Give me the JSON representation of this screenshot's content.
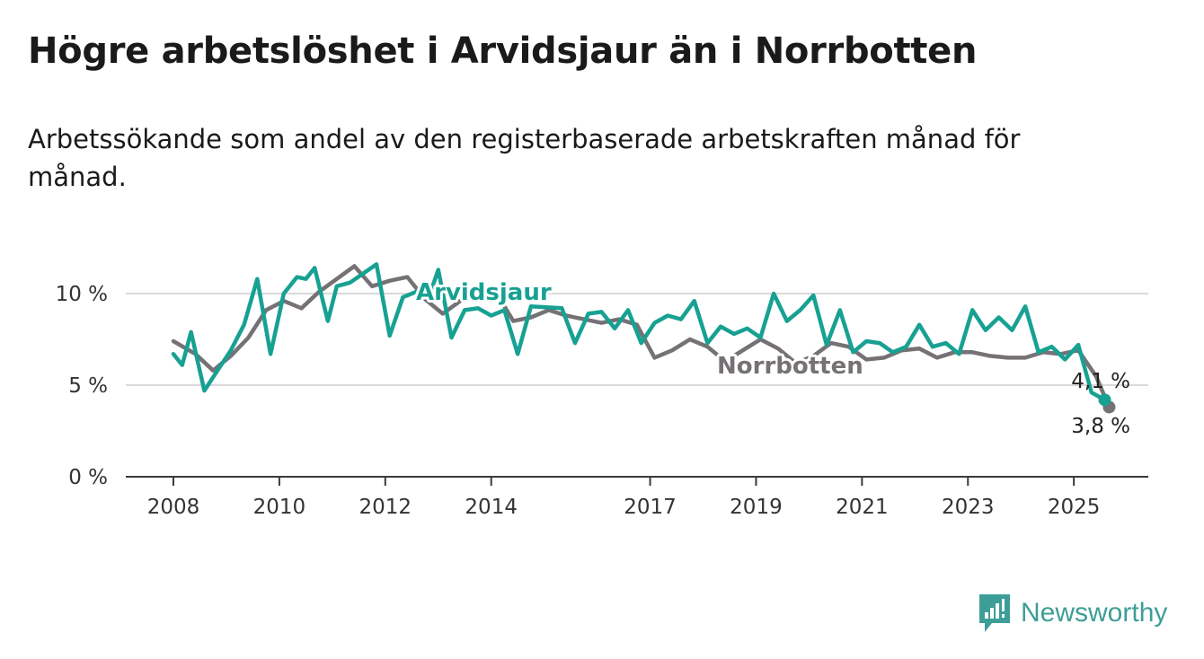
{
  "title": "Högre arbetslöshet i Arvidsjaur än i Norrbotten",
  "subtitle": "Arbetssökande som andel av den registerbaserade arbetskraften månad för månad.",
  "brand": {
    "name": "Newsworthy",
    "color": "#3d9e97"
  },
  "chart_data": {
    "type": "line",
    "title": "Högre arbetslöshet i Arvidsjaur än i Norrbotten",
    "subtitle": "Arbetssökande som andel av den registerbaserade arbetskraften månad för månad.",
    "x_start": "2008-01",
    "x_end": "2025-09",
    "x_ticks": [
      "2008",
      "2010",
      "2012",
      "2014",
      "2017",
      "2019",
      "2021",
      "2023",
      "2025"
    ],
    "y_ticks": [
      "0 %",
      "5 %",
      "10 %"
    ],
    "ylim": [
      0,
      12
    ],
    "grid": true,
    "series": [
      {
        "name": "Arvidsjaur",
        "color": "#17a192",
        "end_label": "4,1 %",
        "points": [
          [
            "2008-01",
            6.7
          ],
          [
            "2008-03",
            6.1
          ],
          [
            "2008-05",
            7.9
          ],
          [
            "2008-08",
            4.7
          ],
          [
            "2008-11",
            5.8
          ],
          [
            "2009-02",
            6.9
          ],
          [
            "2009-05",
            8.3
          ],
          [
            "2009-08",
            10.8
          ],
          [
            "2009-11",
            6.7
          ],
          [
            "2010-02",
            10.0
          ],
          [
            "2010-05",
            10.9
          ],
          [
            "2010-07",
            10.8
          ],
          [
            "2010-09",
            11.4
          ],
          [
            "2010-12",
            8.5
          ],
          [
            "2011-02",
            10.4
          ],
          [
            "2011-05",
            10.6
          ],
          [
            "2011-08",
            11.1
          ],
          [
            "2011-11",
            11.6
          ],
          [
            "2012-02",
            7.7
          ],
          [
            "2012-05",
            9.8
          ],
          [
            "2012-08",
            10.1
          ],
          [
            "2012-11",
            9.9
          ],
          [
            "2013-01",
            11.3
          ],
          [
            "2013-04",
            7.6
          ],
          [
            "2013-07",
            9.1
          ],
          [
            "2013-10",
            9.2
          ],
          [
            "2014-01",
            8.8
          ],
          [
            "2014-04",
            9.1
          ],
          [
            "2014-07",
            6.7
          ],
          [
            "2014-10",
            9.3
          ],
          [
            "2015-05",
            9.2
          ],
          [
            "2015-08",
            7.3
          ],
          [
            "2015-11",
            8.9
          ],
          [
            "2016-02",
            9.0
          ],
          [
            "2016-05",
            8.1
          ],
          [
            "2016-08",
            9.1
          ],
          [
            "2016-11",
            7.3
          ],
          [
            "2017-02",
            8.4
          ],
          [
            "2017-05",
            8.8
          ],
          [
            "2017-08",
            8.6
          ],
          [
            "2017-11",
            9.6
          ],
          [
            "2018-02",
            7.3
          ],
          [
            "2018-05",
            8.2
          ],
          [
            "2018-08",
            7.8
          ],
          [
            "2018-11",
            8.1
          ],
          [
            "2019-02",
            7.6
          ],
          [
            "2019-05",
            10.0
          ],
          [
            "2019-08",
            8.5
          ],
          [
            "2019-11",
            9.1
          ],
          [
            "2020-02",
            9.9
          ],
          [
            "2020-05",
            7.2
          ],
          [
            "2020-08",
            9.1
          ],
          [
            "2020-11",
            6.8
          ],
          [
            "2021-02",
            7.4
          ],
          [
            "2021-05",
            7.3
          ],
          [
            "2021-08",
            6.8
          ],
          [
            "2021-11",
            7.1
          ],
          [
            "2022-02",
            8.3
          ],
          [
            "2022-05",
            7.1
          ],
          [
            "2022-08",
            7.3
          ],
          [
            "2022-11",
            6.7
          ],
          [
            "2023-02",
            9.1
          ],
          [
            "2023-05",
            8.0
          ],
          [
            "2023-08",
            8.7
          ],
          [
            "2023-11",
            8.0
          ],
          [
            "2024-02",
            9.3
          ],
          [
            "2024-05",
            6.8
          ],
          [
            "2024-08",
            7.1
          ],
          [
            "2024-11",
            6.4
          ],
          [
            "2025-02",
            7.2
          ],
          [
            "2025-05",
            4.6
          ],
          [
            "2025-08",
            4.2
          ]
        ]
      },
      {
        "name": "Norrbotten",
        "color": "#757175",
        "end_label": "3,8 %",
        "points": [
          [
            "2008-01",
            7.4
          ],
          [
            "2008-06",
            6.7
          ],
          [
            "2008-10",
            5.8
          ],
          [
            "2009-02",
            6.6
          ],
          [
            "2009-06",
            7.6
          ],
          [
            "2009-10",
            9.1
          ],
          [
            "2010-02",
            9.6
          ],
          [
            "2010-06",
            9.2
          ],
          [
            "2010-10",
            10.1
          ],
          [
            "2011-02",
            10.8
          ],
          [
            "2011-06",
            11.5
          ],
          [
            "2011-10",
            10.4
          ],
          [
            "2012-02",
            10.7
          ],
          [
            "2012-06",
            10.9
          ],
          [
            "2012-10",
            9.7
          ],
          [
            "2013-02",
            8.9
          ],
          [
            "2013-06",
            9.6
          ],
          [
            "2013-10",
            10.0
          ],
          [
            "2014-02",
            10.1
          ],
          [
            "2014-06",
            8.5
          ],
          [
            "2014-10",
            8.7
          ],
          [
            "2015-02",
            9.1
          ],
          [
            "2015-06",
            8.8
          ],
          [
            "2015-10",
            8.6
          ],
          [
            "2016-02",
            8.4
          ],
          [
            "2016-06",
            8.6
          ],
          [
            "2016-10",
            8.3
          ],
          [
            "2017-02",
            6.5
          ],
          [
            "2017-06",
            6.9
          ],
          [
            "2017-10",
            7.5
          ],
          [
            "2018-02",
            7.1
          ],
          [
            "2018-06",
            6.3
          ],
          [
            "2018-10",
            6.9
          ],
          [
            "2019-02",
            7.5
          ],
          [
            "2019-06",
            7.0
          ],
          [
            "2019-10",
            6.2
          ],
          [
            "2020-02",
            6.6
          ],
          [
            "2020-06",
            7.3
          ],
          [
            "2020-10",
            7.1
          ],
          [
            "2021-02",
            6.4
          ],
          [
            "2021-06",
            6.5
          ],
          [
            "2021-10",
            6.9
          ],
          [
            "2022-02",
            7.0
          ],
          [
            "2022-06",
            6.5
          ],
          [
            "2022-10",
            6.8
          ],
          [
            "2023-02",
            6.8
          ],
          [
            "2023-06",
            6.6
          ],
          [
            "2023-10",
            6.5
          ],
          [
            "2024-02",
            6.5
          ],
          [
            "2024-06",
            6.8
          ],
          [
            "2024-10",
            6.7
          ],
          [
            "2025-02",
            6.9
          ],
          [
            "2025-06",
            5.5
          ],
          [
            "2025-09",
            3.8
          ]
        ]
      }
    ]
  }
}
